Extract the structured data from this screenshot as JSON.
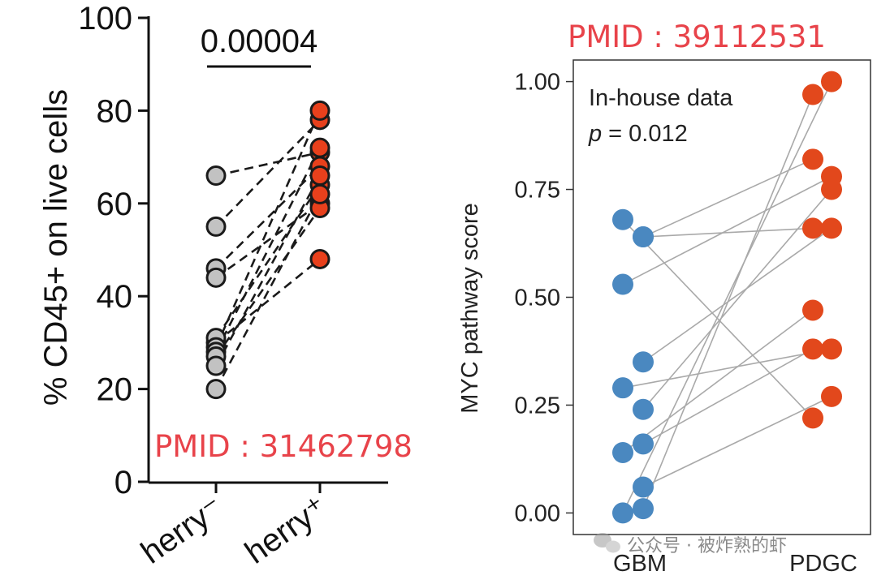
{
  "chart_data": [
    {
      "type": "scatter",
      "subtype": "paired-dot",
      "ylabel": "% CD45+ on live cells",
      "ylim": [
        0,
        100
      ],
      "yticks": [
        0,
        20,
        40,
        60,
        80,
        100
      ],
      "categories": [
        "mCherry⁻",
        "mCherry⁺"
      ],
      "category_labels_visible": [
        "herry⁻",
        "herry⁺"
      ],
      "significance": "0.00004",
      "pairs": [
        [
          66,
          71
        ],
        [
          55,
          78
        ],
        [
          46,
          68
        ],
        [
          44,
          60
        ],
        [
          30,
          48
        ],
        [
          31,
          64
        ],
        [
          29,
          80
        ],
        [
          28,
          72
        ],
        [
          27,
          59
        ],
        [
          25,
          66
        ],
        [
          20,
          62
        ]
      ],
      "series": [
        {
          "name": "mCherry⁻",
          "color": "#c2c2c2",
          "values": [
            66,
            55,
            46,
            44,
            30,
            31,
            29,
            28,
            27,
            25,
            20
          ]
        },
        {
          "name": "mCherry⁺",
          "color": "#e8401c",
          "values": [
            71,
            78,
            68,
            60,
            48,
            64,
            80,
            72,
            59,
            66,
            62
          ]
        }
      ],
      "source": "PMID : 31462798"
    },
    {
      "type": "scatter",
      "subtype": "paired-dot",
      "ylabel": "MYC pathway score",
      "ylim": [
        -0.05,
        1.05
      ],
      "yticks": [
        "0.00",
        "0.25",
        "0.50",
        "0.75",
        "1.00"
      ],
      "categories": [
        "GBM",
        "PDGC"
      ],
      "annotation_title": "In-house data",
      "p_label": "p",
      "p_value": "= 0.012",
      "pairs": [
        [
          0.68,
          0.22
        ],
        [
          0.64,
          0.66
        ],
        [
          0.64,
          0.82
        ],
        [
          0.53,
          0.78
        ],
        [
          0.35,
          0.66
        ],
        [
          0.29,
          0.38
        ],
        [
          0.24,
          0.75
        ],
        [
          0.16,
          0.38
        ],
        [
          0.14,
          0.47
        ],
        [
          0.06,
          0.27
        ],
        [
          0.01,
          0.97
        ],
        [
          0.0,
          1.0
        ]
      ],
      "gbm_jitter": [
        0,
        1,
        1,
        0,
        1,
        0,
        1,
        1,
        0,
        1,
        1,
        0
      ],
      "pdgc_jitter": [
        0,
        0,
        0,
        1,
        1,
        1,
        1,
        0,
        0,
        1,
        0,
        1
      ],
      "series": [
        {
          "name": "GBM",
          "color": "#4a88c0",
          "values": [
            0.68,
            0.64,
            0.64,
            0.53,
            0.35,
            0.29,
            0.24,
            0.16,
            0.14,
            0.06,
            0.01,
            0.0
          ]
        },
        {
          "name": "PDGC",
          "color": "#e2481c",
          "values": [
            0.22,
            0.66,
            0.82,
            0.78,
            0.66,
            0.38,
            0.75,
            0.38,
            0.47,
            0.27,
            0.97,
            1.0
          ]
        }
      ],
      "source": "PMID : 39112531"
    }
  ],
  "watermark": {
    "icon": "wechat-icon",
    "text": "公众号 · 被炸熟的虾"
  },
  "colors": {
    "pmid_text": "#e8434a",
    "left_null": "#c2c2c2",
    "left_pos": "#e8401c",
    "gbm": "#4a88c0",
    "pdgc": "#e2481c"
  }
}
